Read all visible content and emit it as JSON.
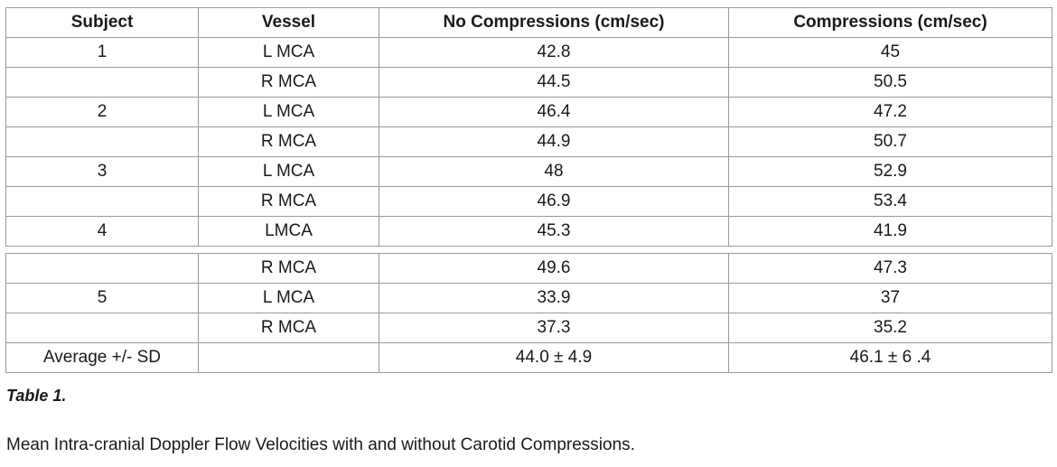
{
  "table": {
    "headers": [
      "Subject",
      "Vessel",
      "No Compressions (cm/sec)",
      "Compressions (cm/sec)"
    ],
    "rows_top": [
      {
        "subject": "1",
        "vessel": "L MCA",
        "no_compressions": "42.8",
        "compressions": "45"
      },
      {
        "subject": "",
        "vessel": "R MCA",
        "no_compressions": "44.5",
        "compressions": "50.5"
      },
      {
        "subject": "2",
        "vessel": "L MCA",
        "no_compressions": "46.4",
        "compressions": "47.2"
      },
      {
        "subject": "",
        "vessel": "R MCA",
        "no_compressions": "44.9",
        "compressions": "50.7"
      },
      {
        "subject": "3",
        "vessel": "L MCA",
        "no_compressions": "48",
        "compressions": "52.9"
      },
      {
        "subject": "",
        "vessel": "R MCA",
        "no_compressions": "46.9",
        "compressions": "53.4"
      },
      {
        "subject": "4",
        "vessel": "LMCA",
        "no_compressions": "45.3",
        "compressions": "41.9"
      }
    ],
    "rows_bottom": [
      {
        "subject": "",
        "vessel": "R MCA",
        "no_compressions": "49.6",
        "compressions": "47.3"
      },
      {
        "subject": "5",
        "vessel": "L MCA",
        "no_compressions": "33.9",
        "compressions": "37"
      },
      {
        "subject": "",
        "vessel": "R MCA",
        "no_compressions": "37.3",
        "compressions": "35.2"
      },
      {
        "subject": "Average +/- SD",
        "vessel": "",
        "no_compressions": "44.0 ± 4.9",
        "compressions": "46.1 ± 6 .4"
      }
    ]
  },
  "caption": {
    "title": "Table 1.",
    "text": "Mean Intra-cranial Doppler Flow Velocities with and without Carotid Compressions."
  }
}
